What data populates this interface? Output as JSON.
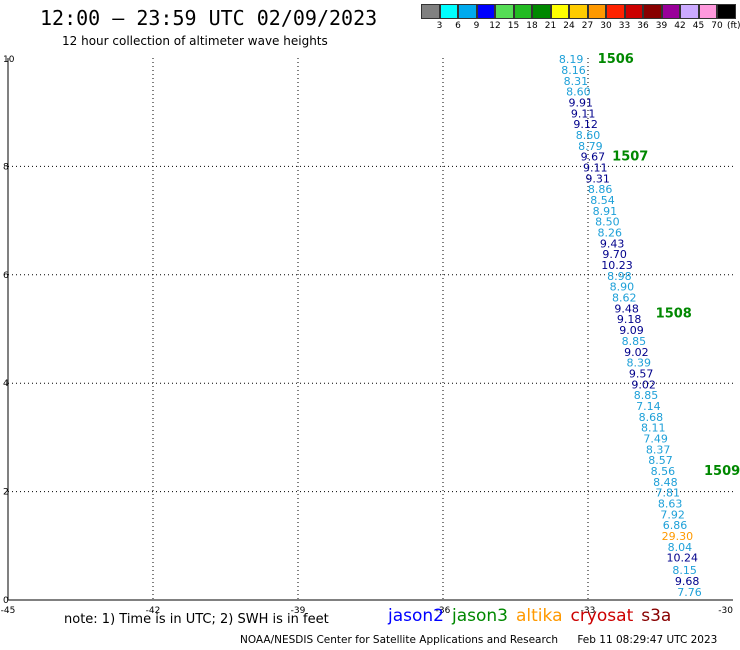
{
  "header": {
    "title": "12:00 – 23:59 UTC 02/09/2023",
    "subtitle": "12 hour collection of altimeter wave heights"
  },
  "color_scale": {
    "colors": [
      "#808080",
      "#00ffff",
      "#00aaee",
      "#0000ff",
      "#55dd55",
      "#22bb22",
      "#008800",
      "#ffff00",
      "#ffcc00",
      "#ff9900",
      "#ff2200",
      "#cc0000",
      "#880000",
      "#990099",
      "#ccaaff",
      "#ff99dd",
      "#000000"
    ],
    "labels": [
      "3",
      "6",
      "9",
      "12",
      "15",
      "18",
      "21",
      "24",
      "27",
      "30",
      "33",
      "36",
      "39",
      "42",
      "45",
      "70"
    ],
    "unit": "(ft)"
  },
  "chart_data": {
    "type": "scatter",
    "xlim": [
      -45,
      -30
    ],
    "ylim": [
      0,
      10
    ],
    "x_ticks": [
      "-45",
      "-42",
      "-39",
      "-36",
      "-33",
      "-30"
    ],
    "y_ticks": [
      "0",
      "2",
      "4",
      "6",
      "8",
      "10"
    ],
    "grid": true,
    "pass_labels": [
      {
        "text": "1506",
        "x": -32.8,
        "y": 10.0,
        "color": "#008800"
      },
      {
        "text": "1507",
        "x": -32.5,
        "y": 8.2,
        "color": "#008800"
      },
      {
        "text": "1508",
        "x": -31.6,
        "y": 5.3,
        "color": "#008800"
      },
      {
        "text": "1509",
        "x": -30.6,
        "y": 2.4,
        "color": "#008800"
      }
    ],
    "points": [
      {
        "label": "8.19",
        "x": -33.35,
        "y": 9.98,
        "color": "#1ea0d8"
      },
      {
        "label": "8.16",
        "x": -33.3,
        "y": 9.78,
        "color": "#1ea0d8"
      },
      {
        "label": "8.31",
        "x": -33.25,
        "y": 9.58,
        "color": "#1ea0d8"
      },
      {
        "label": "8.60",
        "x": -33.2,
        "y": 9.38,
        "color": "#1ea0d8"
      },
      {
        "label": "9.91",
        "x": -33.15,
        "y": 9.18,
        "color": "#00008b"
      },
      {
        "label": "9.11",
        "x": -33.1,
        "y": 8.98,
        "color": "#00008b"
      },
      {
        "label": "9.12",
        "x": -33.05,
        "y": 8.78,
        "color": "#00008b"
      },
      {
        "label": "8.60",
        "x": -33.0,
        "y": 8.58,
        "color": "#1ea0d8"
      },
      {
        "label": "8.79",
        "x": -32.95,
        "y": 8.38,
        "color": "#1ea0d8"
      },
      {
        "label": "9.67",
        "x": -32.9,
        "y": 8.18,
        "color": "#00008b"
      },
      {
        "label": "9.11",
        "x": -32.85,
        "y": 7.98,
        "color": "#00008b"
      },
      {
        "label": "9.31",
        "x": -32.8,
        "y": 7.78,
        "color": "#00008b"
      },
      {
        "label": "8.86",
        "x": -32.75,
        "y": 7.58,
        "color": "#1ea0d8"
      },
      {
        "label": "8.54",
        "x": -32.7,
        "y": 7.38,
        "color": "#1ea0d8"
      },
      {
        "label": "8.91",
        "x": -32.65,
        "y": 7.18,
        "color": "#1ea0d8"
      },
      {
        "label": "8.50",
        "x": -32.6,
        "y": 6.98,
        "color": "#1ea0d8"
      },
      {
        "label": "8.26",
        "x": -32.55,
        "y": 6.78,
        "color": "#1ea0d8"
      },
      {
        "label": "9.43",
        "x": -32.5,
        "y": 6.58,
        "color": "#00008b"
      },
      {
        "label": "9.70",
        "x": -32.45,
        "y": 6.38,
        "color": "#00008b"
      },
      {
        "label": "10.23",
        "x": -32.4,
        "y": 6.18,
        "color": "#00008b"
      },
      {
        "label": "8.98",
        "x": -32.35,
        "y": 5.98,
        "color": "#1ea0d8"
      },
      {
        "label": "8.90",
        "x": -32.3,
        "y": 5.78,
        "color": "#1ea0d8"
      },
      {
        "label": "8.62",
        "x": -32.25,
        "y": 5.58,
        "color": "#1ea0d8"
      },
      {
        "label": "9.48",
        "x": -32.2,
        "y": 5.38,
        "color": "#00008b"
      },
      {
        "label": "9.18",
        "x": -32.15,
        "y": 5.18,
        "color": "#00008b"
      },
      {
        "label": "9.09",
        "x": -32.1,
        "y": 4.98,
        "color": "#00008b"
      },
      {
        "label": "8.85",
        "x": -32.05,
        "y": 4.78,
        "color": "#1ea0d8"
      },
      {
        "label": "9.02",
        "x": -32.0,
        "y": 4.58,
        "color": "#00008b"
      },
      {
        "label": "8.39",
        "x": -31.95,
        "y": 4.38,
        "color": "#1ea0d8"
      },
      {
        "label": "9.57",
        "x": -31.9,
        "y": 4.18,
        "color": "#00008b"
      },
      {
        "label": "9.02",
        "x": -31.85,
        "y": 3.98,
        "color": "#00008b"
      },
      {
        "label": "8.85",
        "x": -31.8,
        "y": 3.78,
        "color": "#1ea0d8"
      },
      {
        "label": "7.14",
        "x": -31.75,
        "y": 3.58,
        "color": "#1ea0d8"
      },
      {
        "label": "8.68",
        "x": -31.7,
        "y": 3.38,
        "color": "#1ea0d8"
      },
      {
        "label": "8.11",
        "x": -31.65,
        "y": 3.18,
        "color": "#1ea0d8"
      },
      {
        "label": "7.49",
        "x": -31.6,
        "y": 2.98,
        "color": "#1ea0d8"
      },
      {
        "label": "8.37",
        "x": -31.55,
        "y": 2.78,
        "color": "#1ea0d8"
      },
      {
        "label": "8.57",
        "x": -31.5,
        "y": 2.58,
        "color": "#1ea0d8"
      },
      {
        "label": "8.56",
        "x": -31.45,
        "y": 2.38,
        "color": "#1ea0d8"
      },
      {
        "label": "8.48",
        "x": -31.4,
        "y": 2.18,
        "color": "#1ea0d8"
      },
      {
        "label": "7.81",
        "x": -31.35,
        "y": 1.98,
        "color": "#1ea0d8"
      },
      {
        "label": "8.63",
        "x": -31.3,
        "y": 1.78,
        "color": "#1ea0d8"
      },
      {
        "label": "7.92",
        "x": -31.25,
        "y": 1.58,
        "color": "#1ea0d8"
      },
      {
        "label": "6.86",
        "x": -31.2,
        "y": 1.38,
        "color": "#1ea0d8"
      },
      {
        "label": "29.30",
        "x": -31.15,
        "y": 1.18,
        "color": "#ff9900"
      },
      {
        "label": "8.04",
        "x": -31.1,
        "y": 0.98,
        "color": "#1ea0d8"
      },
      {
        "label": "10.24",
        "x": -31.05,
        "y": 0.78,
        "color": "#00008b"
      },
      {
        "label": "8.15",
        "x": -31.0,
        "y": 0.55,
        "color": "#1ea0d8"
      },
      {
        "label": "9.68",
        "x": -30.95,
        "y": 0.35,
        "color": "#00008b"
      },
      {
        "label": "7.76",
        "x": -30.9,
        "y": 0.15,
        "color": "#1ea0d8"
      }
    ]
  },
  "notes": {
    "text": "note: 1) Time is in UTC; 2) SWH is in feet"
  },
  "satellites": [
    {
      "name": "jason2",
      "color": "#0000ff"
    },
    {
      "name": "jason3",
      "color": "#008800"
    },
    {
      "name": "altika",
      "color": "#ff9900"
    },
    {
      "name": "cryosat",
      "color": "#cc0000"
    },
    {
      "name": "s3a",
      "color": "#880000"
    }
  ],
  "footer": {
    "source": "NOAA/NESDIS Center for Satellite Applications and Research",
    "timestamp": "Feb 11 08:29:47 UTC 2023"
  }
}
